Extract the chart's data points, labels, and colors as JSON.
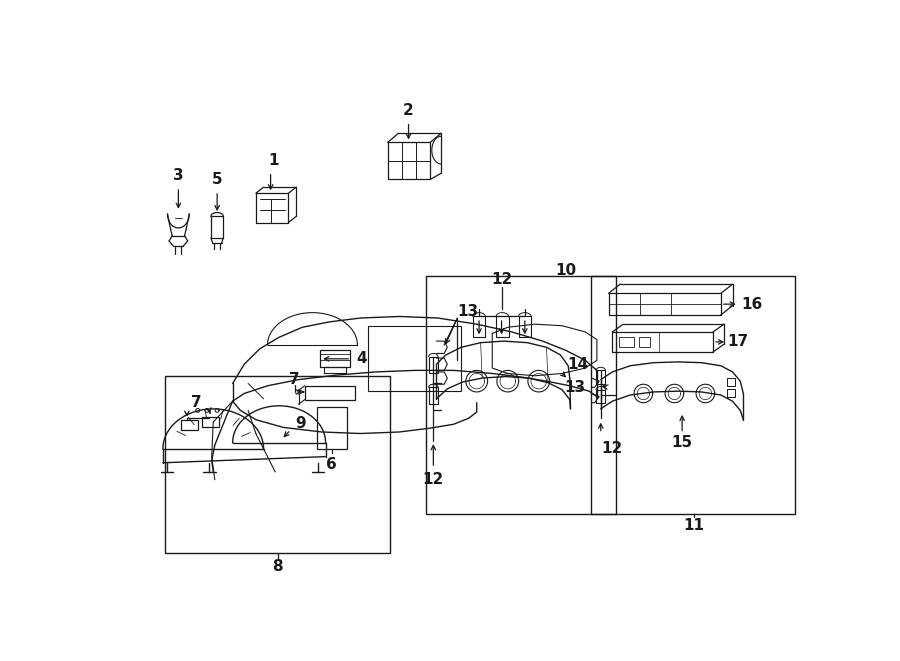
{
  "fig_width": 9.0,
  "fig_height": 6.61,
  "dpi": 100,
  "bg_color": "#ffffff",
  "line_color": "#1a1a1a",
  "lw": 0.9
}
